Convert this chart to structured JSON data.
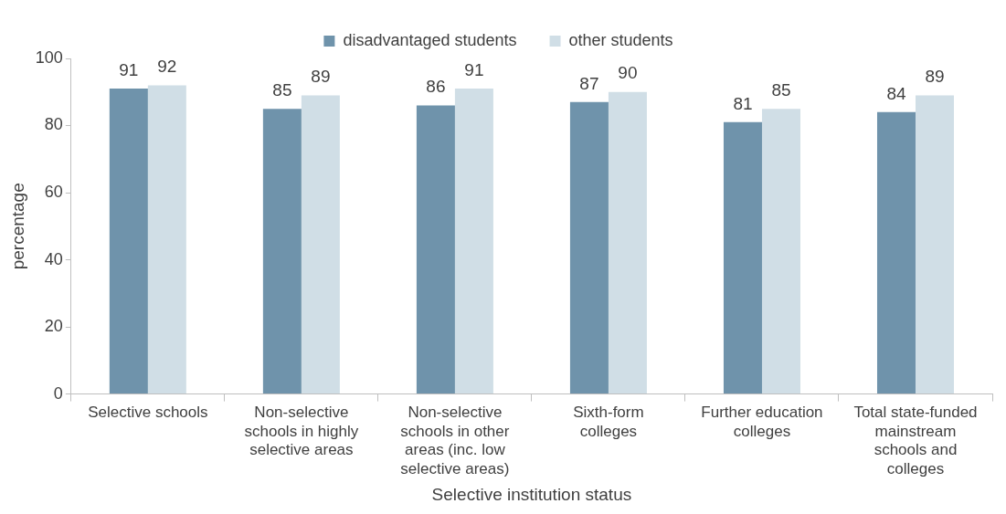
{
  "chart_data": {
    "type": "bar",
    "xlabel": "Selective institution status",
    "ylabel": "percentage",
    "categories": [
      "Selective schools",
      "Non-selective schools in highly selective areas",
      "Non-selective schools in other areas (inc. low selective areas)",
      "Sixth-form colleges",
      "Further education colleges",
      "Total state-funded mainstream schools and colleges"
    ],
    "series": [
      {
        "name": "disadvantaged students",
        "color": "#6f93ab",
        "values": [
          91,
          85,
          86,
          87,
          81,
          84
        ]
      },
      {
        "name": "other students",
        "color": "#d0dee6",
        "values": [
          92,
          89,
          91,
          90,
          85,
          89
        ]
      }
    ],
    "ylim": [
      0,
      100
    ],
    "yticks": [
      0,
      20,
      40,
      60,
      80,
      100
    ],
    "grid": false,
    "legend": "top",
    "data_labels": true
  }
}
